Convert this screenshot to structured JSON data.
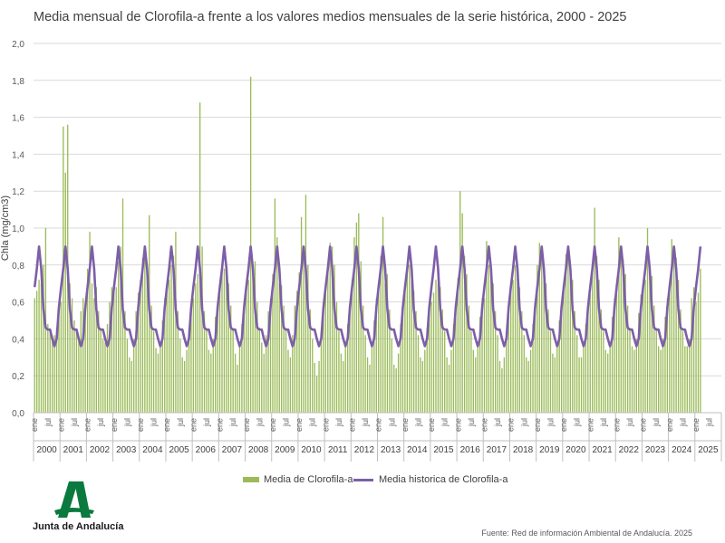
{
  "chart_data": {
    "type": "bar+line",
    "title": "Media mensual de Clorofila-a frente a los valores medios mensuales de la serie histórica, 2000 - 2025",
    "ylabel": "Chla (mg/cm3)",
    "xlabel": "",
    "ylim": [
      0,
      2.0
    ],
    "yticks": [
      "0,0",
      "0,2",
      "0,4",
      "0,6",
      "0,8",
      "1,0",
      "1,2",
      "1,4",
      "1,6",
      "1,8",
      "2,0"
    ],
    "grid": true,
    "legend_position": "bottom",
    "years": [
      "2000",
      "2001",
      "2002",
      "2003",
      "2004",
      "2005",
      "2006",
      "2007",
      "2008",
      "2009",
      "2010",
      "2011",
      "2012",
      "2013",
      "2014",
      "2015",
      "2016",
      "2017",
      "2018",
      "2019",
      "2020",
      "2021",
      "2022",
      "2023",
      "2024",
      "2025"
    ],
    "month_tick_labels": [
      "ene",
      "jul"
    ],
    "series": [
      {
        "name": "Media de Clorofila-a",
        "kind": "bar",
        "color": "#9bbb59",
        "values": [
          [
            0.62,
            0.66,
            0.72,
            0.7,
            0.8,
            1.0,
            0.48,
            0.44,
            0.4,
            0.42,
            0.46,
            0.55
          ],
          [
            0.6,
            1.55,
            1.3,
            1.56,
            0.7,
            0.62,
            0.5,
            0.45,
            0.4,
            0.55,
            0.62,
            0.6
          ],
          [
            0.78,
            0.98,
            0.7,
            0.62,
            0.68,
            0.55,
            0.45,
            0.4,
            0.38,
            0.48,
            0.6,
            0.68
          ],
          [
            0.7,
            0.68,
            0.82,
            0.9,
            1.16,
            0.55,
            0.4,
            0.3,
            0.28,
            0.4,
            0.55,
            0.65
          ],
          [
            0.72,
            0.84,
            0.88,
            0.8,
            1.07,
            0.58,
            0.44,
            0.35,
            0.32,
            0.38,
            0.5,
            0.62
          ],
          [
            0.65,
            0.72,
            0.8,
            0.85,
            0.98,
            0.55,
            0.4,
            0.3,
            0.28,
            0.34,
            0.46,
            0.58
          ],
          [
            0.62,
            0.7,
            0.75,
            1.68,
            0.9,
            0.55,
            0.45,
            0.34,
            0.32,
            0.4,
            0.52,
            0.6
          ],
          [
            0.7,
            0.8,
            0.78,
            0.75,
            0.7,
            0.58,
            0.45,
            0.32,
            0.26,
            0.36,
            0.48,
            0.58
          ],
          [
            0.66,
            0.72,
            1.82,
            0.8,
            0.82,
            0.6,
            0.46,
            0.38,
            0.32,
            0.42,
            0.55,
            0.62
          ],
          [
            0.75,
            1.16,
            0.95,
            0.7,
            0.69,
            0.58,
            0.45,
            0.34,
            0.3,
            0.42,
            0.58,
            0.66
          ],
          [
            0.76,
            1.06,
            0.9,
            1.18,
            0.8,
            0.56,
            0.4,
            0.27,
            0.2,
            0.28,
            0.42,
            0.6
          ],
          [
            0.7,
            0.78,
            0.92,
            0.9,
            0.8,
            0.6,
            0.44,
            0.32,
            0.28,
            0.36,
            0.48,
            0.58
          ],
          [
            0.72,
            0.95,
            1.03,
            1.08,
            0.82,
            0.58,
            0.42,
            0.3,
            0.26,
            0.36,
            0.5,
            0.62
          ],
          [
            0.65,
            0.85,
            1.06,
            0.7,
            0.75,
            0.56,
            0.4,
            0.26,
            0.24,
            0.32,
            0.48,
            0.6
          ],
          [
            0.68,
            0.78,
            0.8,
            0.72,
            0.66,
            0.55,
            0.42,
            0.3,
            0.28,
            0.34,
            0.46,
            0.58
          ],
          [
            0.6,
            0.65,
            0.72,
            0.7,
            0.68,
            0.56,
            0.44,
            0.3,
            0.26,
            0.34,
            0.48,
            0.58
          ],
          [
            0.73,
            1.2,
            1.08,
            0.85,
            0.75,
            0.58,
            0.44,
            0.34,
            0.3,
            0.38,
            0.52,
            0.62
          ],
          [
            0.62,
            0.93,
            0.8,
            0.75,
            0.7,
            0.55,
            0.42,
            0.28,
            0.24,
            0.3,
            0.44,
            0.58
          ],
          [
            0.66,
            0.72,
            0.8,
            0.75,
            0.68,
            0.55,
            0.42,
            0.3,
            0.28,
            0.34,
            0.48,
            0.6
          ],
          [
            0.8,
            0.92,
            0.85,
            0.78,
            0.7,
            0.56,
            0.44,
            0.32,
            0.3,
            0.36,
            0.5,
            0.6
          ],
          [
            0.7,
            0.86,
            0.9,
            0.8,
            0.72,
            0.55,
            0.42,
            0.3,
            0.3,
            0.36,
            0.48,
            0.58
          ],
          [
            0.64,
            0.8,
            1.11,
            0.85,
            0.72,
            0.56,
            0.44,
            0.34,
            0.32,
            0.38,
            0.52,
            0.62
          ],
          [
            0.68,
            0.95,
            0.88,
            0.83,
            0.75,
            0.58,
            0.46,
            0.36,
            0.34,
            0.4,
            0.54,
            0.64
          ],
          [
            0.66,
            0.72,
            1.0,
            0.8,
            0.74,
            0.58,
            0.46,
            0.36,
            0.34,
            0.4,
            0.52,
            0.62
          ],
          [
            0.65,
            0.94,
            0.9,
            0.84,
            0.72,
            0.56,
            0.44,
            0.36,
            0.36,
            0.4,
            0.62,
            0.68
          ],
          [
            0.6,
            0.65,
            0.78
          ]
        ]
      },
      {
        "name": "Media historica de Clorofila-a",
        "kind": "line",
        "color": "#7d5ea8",
        "monthly_profile": [
          0.68,
          0.78,
          0.9,
          0.78,
          0.56,
          0.46,
          0.45,
          0.45,
          0.4,
          0.36,
          0.4,
          0.57
        ]
      }
    ]
  },
  "logo": {
    "text": "Junta de Andalucía"
  },
  "source": "Fuente: Red de información Ambiental de Andalucía. 2025"
}
